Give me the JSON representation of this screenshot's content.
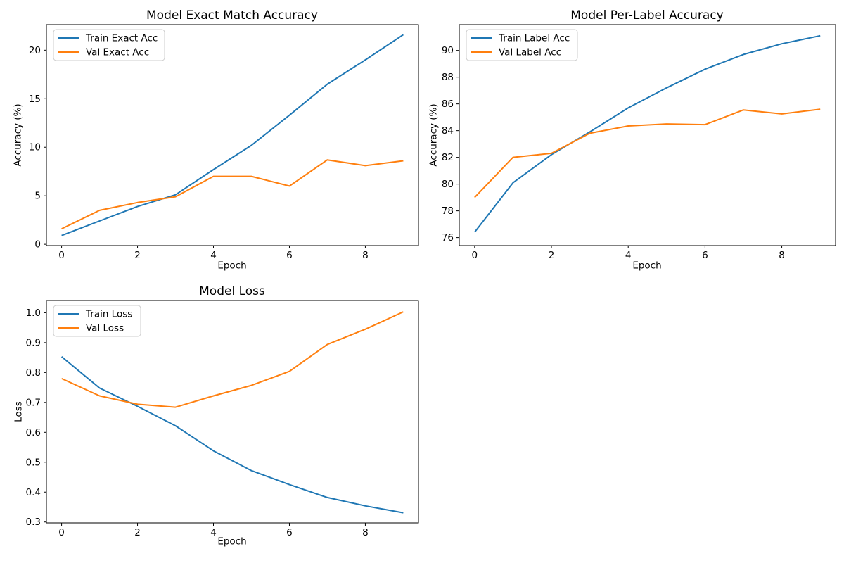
{
  "figure": {
    "background_color": "#ffffff"
  },
  "palette": {
    "train_color": "#1f77b4",
    "val_color": "#ff7f0e",
    "spine_color": "#000000",
    "legend_border_color": "#cccccc"
  },
  "chart_data": [
    {
      "id": "exact-match-accuracy",
      "type": "line",
      "title": "Model Exact Match Accuracy",
      "xlabel": "Epoch",
      "ylabel": "Accuracy (%)",
      "legend_position": "upper left",
      "grid": false,
      "x": [
        0,
        1,
        2,
        3,
        4,
        5,
        6,
        7,
        8,
        9
      ],
      "series": [
        {
          "name": "Train Exact Acc",
          "color": "#1f77b4",
          "values": [
            0.9,
            2.4,
            3.9,
            5.1,
            7.7,
            10.2,
            13.3,
            16.5,
            19.0,
            21.6
          ]
        },
        {
          "name": "Val Exact Acc",
          "color": "#ff7f0e",
          "values": [
            1.6,
            3.5,
            4.3,
            4.9,
            7.0,
            7.0,
            6.0,
            8.7,
            8.1,
            8.6
          ]
        }
      ],
      "xlim": [
        -0.4,
        9.4
      ],
      "ylim": [
        -0.135,
        22.635
      ],
      "xticks": [
        0,
        2,
        4,
        6,
        8
      ],
      "xtick_labels": [
        "0",
        "2",
        "4",
        "6",
        "8"
      ],
      "yticks": [
        0,
        5,
        10,
        15,
        20
      ],
      "ytick_labels": [
        "0",
        "5",
        "10",
        "15",
        "20"
      ]
    },
    {
      "id": "per-label-accuracy",
      "type": "line",
      "title": "Model Per-Label Accuracy",
      "xlabel": "Epoch",
      "ylabel": "Accuracy (%)",
      "legend_position": "upper left",
      "grid": false,
      "x": [
        0,
        1,
        2,
        3,
        4,
        5,
        6,
        7,
        8,
        9
      ],
      "series": [
        {
          "name": "Train Label Acc",
          "color": "#1f77b4",
          "values": [
            76.4,
            80.1,
            82.2,
            83.9,
            85.7,
            87.2,
            88.6,
            89.7,
            90.5,
            91.1
          ]
        },
        {
          "name": "Val Label Acc",
          "color": "#ff7f0e",
          "values": [
            79.0,
            82.0,
            82.3,
            83.8,
            84.35,
            84.5,
            84.45,
            85.55,
            85.25,
            85.6
          ]
        }
      ],
      "xlim": [
        -0.4,
        9.4
      ],
      "ylim": [
        75.4,
        91.93
      ],
      "xticks": [
        0,
        2,
        4,
        6,
        8
      ],
      "xtick_labels": [
        "0",
        "2",
        "4",
        "6",
        "8"
      ],
      "yticks": [
        76,
        78,
        80,
        82,
        84,
        86,
        88,
        90
      ],
      "ytick_labels": [
        "76",
        "78",
        "80",
        "82",
        "84",
        "86",
        "88",
        "90"
      ]
    },
    {
      "id": "loss",
      "type": "line",
      "title": "Model Loss",
      "xlabel": "Epoch",
      "ylabel": "Loss",
      "legend_position": "upper left",
      "grid": false,
      "x": [
        0,
        1,
        2,
        3,
        4,
        5,
        6,
        7,
        8,
        9
      ],
      "series": [
        {
          "name": "Train Loss",
          "color": "#1f77b4",
          "values": [
            0.853,
            0.748,
            0.687,
            0.622,
            0.538,
            0.472,
            0.425,
            0.382,
            0.354,
            0.331
          ]
        },
        {
          "name": "Val Loss",
          "color": "#ff7f0e",
          "values": [
            0.78,
            0.722,
            0.694,
            0.684,
            0.722,
            0.757,
            0.804,
            0.894,
            0.945,
            1.003
          ]
        }
      ],
      "xlim": [
        -0.4,
        9.4
      ],
      "ylim": [
        0.297,
        1.041
      ],
      "xticks": [
        0,
        2,
        4,
        6,
        8
      ],
      "xtick_labels": [
        "0",
        "2",
        "4",
        "6",
        "8"
      ],
      "yticks": [
        0.3,
        0.4,
        0.5,
        0.6,
        0.7,
        0.8,
        0.9,
        1.0
      ],
      "ytick_labels": [
        "0.3",
        "0.4",
        "0.5",
        "0.6",
        "0.7",
        "0.8",
        "0.9",
        "1.0"
      ]
    }
  ]
}
